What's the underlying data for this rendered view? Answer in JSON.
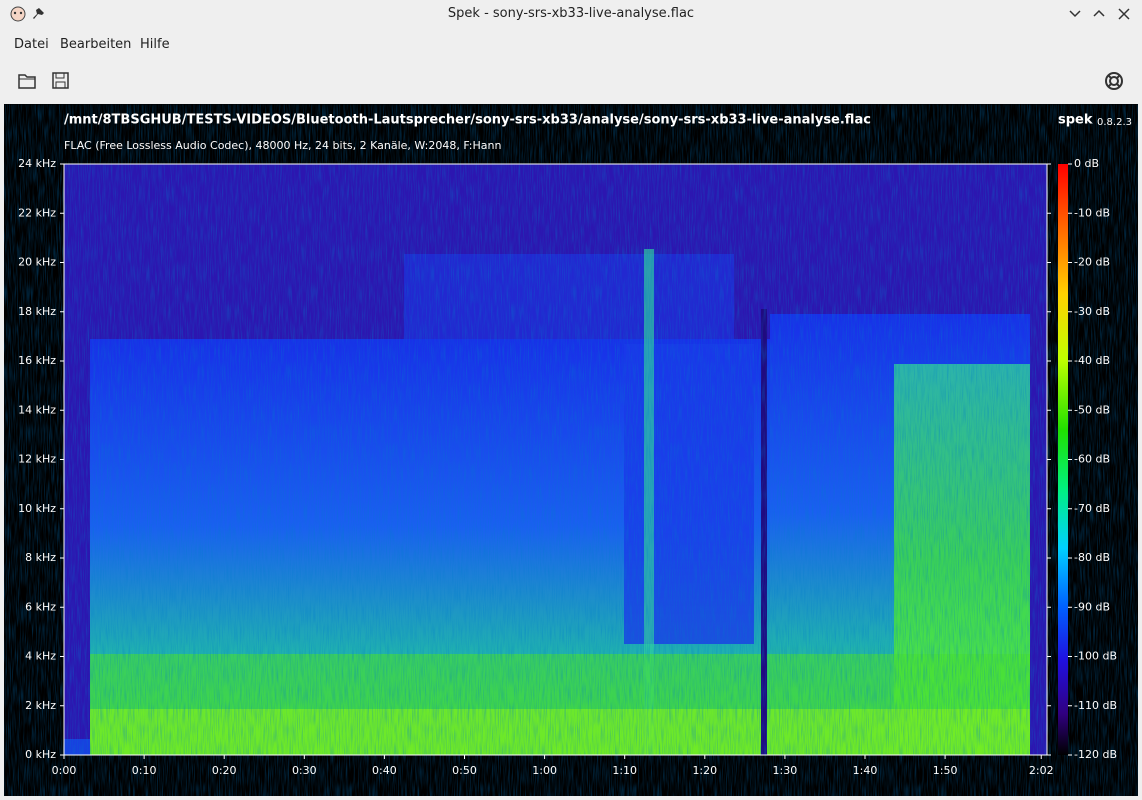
{
  "window": {
    "title": "Spek - sony-srs-xb33-live-analyse.flac"
  },
  "menu": [
    "Datei",
    "Bearbeiten",
    "Hilfe"
  ],
  "header": {
    "path": "/mnt/8TBSGHUB/TESTS-VIDEOS/Bluetooth-Lautsprecher/sony-srs-xb33/analyse/sony-srs-xb33-live-analyse.flac",
    "info": "FLAC (Free Lossless Audio Codec), 48000 Hz, 24 bits, 2 Kanäle, W:2048, F:Hann",
    "app": "spek",
    "version": "0.8.2.3"
  },
  "frequency_axis": [
    "0 kHz",
    "2 kHz",
    "4 kHz",
    "6 kHz",
    "8 kHz",
    "10 kHz",
    "12 kHz",
    "14 kHz",
    "16 kHz",
    "18 kHz",
    "20 kHz",
    "22 kHz",
    "24 kHz"
  ],
  "time_axis": [
    "0:00",
    "0:10",
    "0:20",
    "0:30",
    "0:40",
    "0:50",
    "1:00",
    "1:10",
    "1:20",
    "1:30",
    "1:40",
    "1:50",
    "2:02"
  ],
  "level_axis": [
    "0 dB",
    "-10 dB",
    "-20 dB",
    "-30 dB",
    "-40 dB",
    "-50 dB",
    "-60 dB",
    "-70 dB",
    "-80 dB",
    "-90 dB",
    "-100 dB",
    "-110 dB",
    "-120 dB"
  ]
}
